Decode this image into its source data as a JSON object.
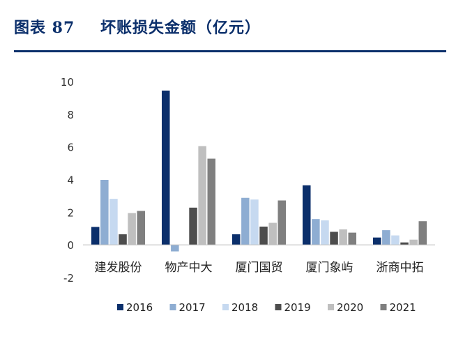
{
  "figure": {
    "label": "图表 87",
    "title": "坏账损失金额（亿元）"
  },
  "colors": {
    "title": "#0b2f6b",
    "series": [
      "#0b2f6b",
      "#8eadd2",
      "#c6d9f0",
      "#4d4d4d",
      "#bfbfbf",
      "#7f7f7f"
    ]
  },
  "chart_data": {
    "type": "bar",
    "title": "坏账损失金额（亿元）",
    "categories": [
      "建发股份",
      "物产中大",
      "厦门国贸",
      "厦门象屿",
      "浙商中拓"
    ],
    "series": [
      {
        "name": "2016",
        "values": [
          1.1,
          9.45,
          0.65,
          3.65,
          0.45
        ]
      },
      {
        "name": "2017",
        "values": [
          3.98,
          -0.4,
          2.88,
          1.58,
          0.9
        ]
      },
      {
        "name": "2018",
        "values": [
          2.82,
          0.0,
          2.78,
          1.5,
          0.58
        ]
      },
      {
        "name": "2019",
        "values": [
          0.65,
          2.28,
          1.12,
          0.8,
          0.15
        ]
      },
      {
        "name": "2020",
        "values": [
          1.95,
          6.05,
          1.35,
          0.95,
          0.32
        ]
      },
      {
        "name": "2021",
        "values": [
          2.08,
          5.28,
          2.72,
          0.75,
          1.45
        ]
      }
    ],
    "ylim": [
      -2,
      10
    ],
    "yticks": [
      10,
      8,
      6,
      4,
      2,
      0,
      -2
    ],
    "grid": false,
    "legend_position": "bottom"
  }
}
